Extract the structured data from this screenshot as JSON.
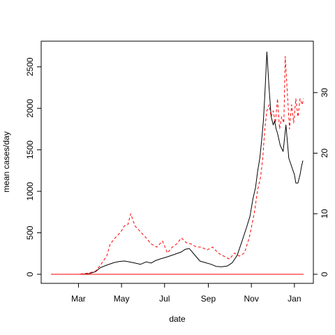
{
  "chart_data": {
    "type": "line",
    "title": "",
    "xlabel": "date",
    "ylabel": "mean cases/day",
    "y2label": "",
    "x_ticks": [
      "Mar",
      "May",
      "Jul",
      "Sep",
      "Nov",
      "Jan"
    ],
    "x_tick_dates": [
      "2020-03-01",
      "2020-05-01",
      "2020-07-01",
      "2020-09-01",
      "2020-11-01",
      "2021-01-01"
    ],
    "xlim": [
      "2020-01-22",
      "2021-01-14"
    ],
    "y_ticks": [
      0,
      500,
      1000,
      1500,
      2000,
      2500
    ],
    "ylim": [
      0,
      2700
    ],
    "y2_ticks": [
      0,
      10,
      20,
      30
    ],
    "y2lim": [
      0,
      37
    ],
    "grid": false,
    "series": [
      {
        "axis": "left",
        "color": "#000000",
        "style": "solid",
        "x": [
          "2020-01-22",
          "2020-02-15",
          "2020-03-01",
          "2020-03-15",
          "2020-03-25",
          "2020-04-01",
          "2020-04-10",
          "2020-04-20",
          "2020-04-28",
          "2020-05-05",
          "2020-05-12",
          "2020-05-20",
          "2020-05-28",
          "2020-06-05",
          "2020-06-12",
          "2020-06-18",
          "2020-06-25",
          "2020-07-05",
          "2020-07-15",
          "2020-07-25",
          "2020-07-30",
          "2020-08-05",
          "2020-08-12",
          "2020-08-20",
          "2020-08-28",
          "2020-09-05",
          "2020-09-12",
          "2020-09-20",
          "2020-09-28",
          "2020-10-05",
          "2020-10-12",
          "2020-10-18",
          "2020-10-25",
          "2020-10-30",
          "2020-11-03",
          "2020-11-07",
          "2020-11-10",
          "2020-11-13",
          "2020-11-16",
          "2020-11-18",
          "2020-11-20",
          "2020-11-23",
          "2020-11-26",
          "2020-11-29",
          "2020-12-02",
          "2020-12-04",
          "2020-12-06",
          "2020-12-08",
          "2020-12-12",
          "2020-12-16",
          "2020-12-20",
          "2020-12-24",
          "2020-12-28",
          "2021-01-01",
          "2021-01-03",
          "2021-01-06",
          "2021-01-09",
          "2021-01-11",
          "2021-01-13"
        ],
        "y": [
          0,
          0,
          0,
          5,
          30,
          80,
          110,
          140,
          155,
          160,
          150,
          135,
          120,
          150,
          135,
          165,
          185,
          210,
          240,
          270,
          300,
          310,
          240,
          160,
          140,
          120,
          95,
          90,
          100,
          140,
          230,
          380,
          560,
          700,
          900,
          1050,
          1250,
          1400,
          1650,
          1850,
          2150,
          2680,
          2250,
          1900,
          1800,
          1850,
          1750,
          1700,
          1550,
          1480,
          1800,
          1400,
          1300,
          1200,
          1100,
          1100,
          1200,
          1300,
          1370
        ]
      },
      {
        "axis": "right",
        "color": "#ff0000",
        "style": "dashed",
        "x": [
          "2020-01-22",
          "2020-02-15",
          "2020-03-01",
          "2020-03-15",
          "2020-03-25",
          "2020-04-01",
          "2020-04-10",
          "2020-04-15",
          "2020-04-22",
          "2020-04-30",
          "2020-05-05",
          "2020-05-10",
          "2020-05-14",
          "2020-05-20",
          "2020-05-28",
          "2020-06-05",
          "2020-06-12",
          "2020-06-20",
          "2020-06-28",
          "2020-07-05",
          "2020-07-12",
          "2020-07-18",
          "2020-07-25",
          "2020-08-01",
          "2020-08-08",
          "2020-08-15",
          "2020-08-22",
          "2020-08-30",
          "2020-09-07",
          "2020-09-15",
          "2020-09-23",
          "2020-10-01",
          "2020-10-08",
          "2020-10-15",
          "2020-10-22",
          "2020-10-29",
          "2020-11-05",
          "2020-11-10",
          "2020-11-14",
          "2020-11-17",
          "2020-11-20",
          "2020-11-23",
          "2020-11-26",
          "2020-11-29",
          "2020-12-02",
          "2020-12-05",
          "2020-12-08",
          "2020-12-11",
          "2020-12-14",
          "2020-12-17",
          "2020-12-19",
          "2020-12-22",
          "2020-12-25",
          "2020-12-28",
          "2020-12-31",
          "2021-01-03",
          "2021-01-06",
          "2021-01-09",
          "2021-01-12",
          "2021-01-14"
        ],
        "y": [
          0,
          0,
          0,
          0.2,
          0.5,
          1.5,
          3,
          5,
          6,
          7,
          8,
          8.2,
          10,
          8,
          7,
          6,
          5,
          4.5,
          5.5,
          3.5,
          4.5,
          5,
          6,
          5.2,
          5,
          4.5,
          4.5,
          4,
          4.5,
          3.5,
          3,
          2.5,
          3.5,
          3,
          3.5,
          6,
          10,
          14,
          16,
          19,
          24,
          27,
          28,
          26,
          27,
          25,
          29,
          24,
          26,
          25,
          36,
          30,
          24,
          28,
          25,
          29,
          26,
          29,
          28,
          29
        ]
      },
      {
        "axis": "right",
        "color": "#ff0000",
        "style": "solid",
        "x": [
          "2020-01-22",
          "2021-01-14"
        ],
        "y": [
          0,
          0
        ]
      }
    ]
  }
}
